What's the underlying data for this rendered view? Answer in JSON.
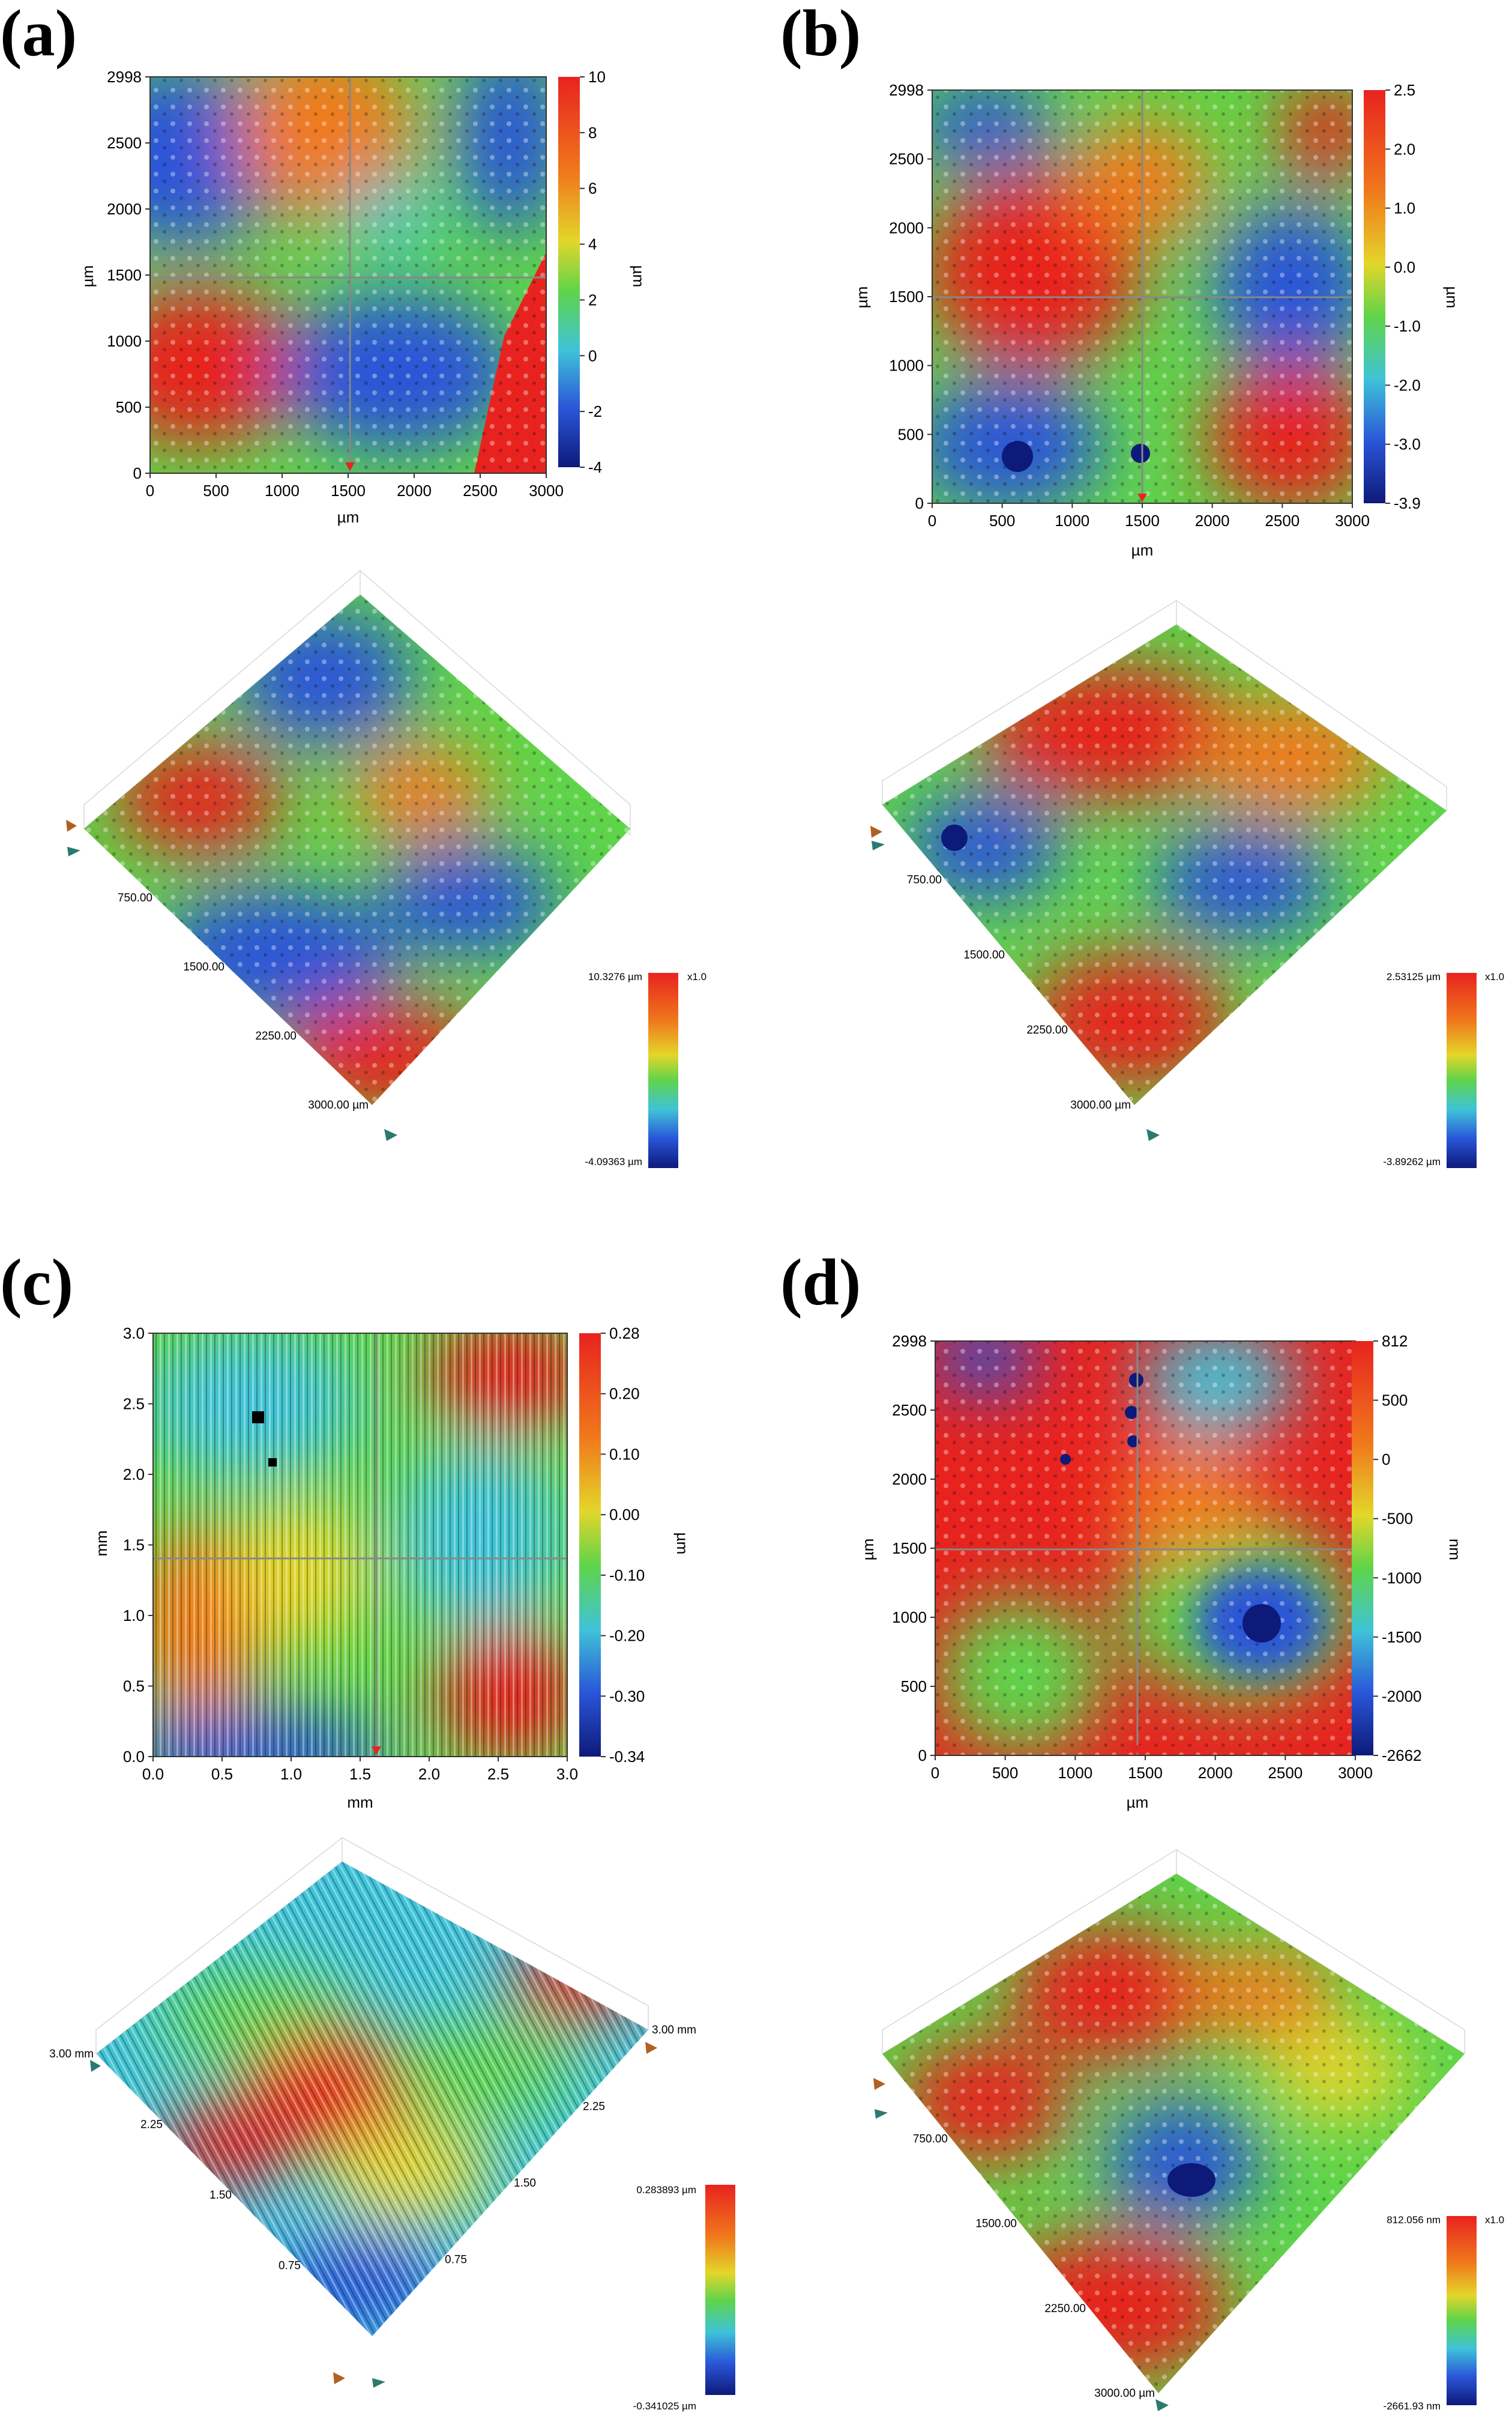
{
  "panels": {
    "a": {
      "label": "(a)",
      "map": {
        "x_ticks": [
          "0",
          "500",
          "1000",
          "1500",
          "2000",
          "2500",
          "3000"
        ],
        "y_ticks": [
          "0",
          "500",
          "1000",
          "1500",
          "2000",
          "2500",
          "2998"
        ],
        "x_unit": "µm",
        "y_unit": "µm",
        "scale_ticks": [
          "10",
          "8",
          "6",
          "4",
          "2",
          "0",
          "-2",
          "-4"
        ],
        "scale_unit": "µm"
      },
      "surface": {
        "axis_ticks": [
          "750.00",
          "1500.00",
          "2250.00",
          "3000.00 µm"
        ],
        "scale_max": "10.3276 µm",
        "scale_min": "-4.09363 µm",
        "zoom": "x1.0"
      }
    },
    "b": {
      "label": "(b)",
      "map": {
        "x_ticks": [
          "0",
          "500",
          "1000",
          "1500",
          "2000",
          "2500",
          "3000"
        ],
        "y_ticks": [
          "0",
          "500",
          "1000",
          "1500",
          "2000",
          "2500",
          "2998"
        ],
        "x_unit": "µm",
        "y_unit": "µm",
        "scale_ticks": [
          "2.5",
          "2.0",
          "1.0",
          "0.0",
          "-1.0",
          "-2.0",
          "-3.0",
          "-3.9"
        ],
        "scale_unit": "µm"
      },
      "surface": {
        "axis_ticks": [
          "750.00",
          "1500.00",
          "2250.00",
          "3000.00 µm"
        ],
        "scale_max": "2.53125 µm",
        "scale_min": "-3.89262 µm",
        "zoom": "x1.0"
      }
    },
    "c": {
      "label": "(c)",
      "map": {
        "x_ticks": [
          "0.0",
          "0.5",
          "1.0",
          "1.5",
          "2.0",
          "2.5",
          "3.0"
        ],
        "y_ticks": [
          "0.0",
          "0.5",
          "1.0",
          "1.5",
          "2.0",
          "2.5",
          "3.0"
        ],
        "x_unit": "mm",
        "y_unit": "mm",
        "scale_ticks": [
          "0.28",
          "0.20",
          "0.10",
          "0.00",
          "-0.10",
          "-0.20",
          "-0.30",
          "-0.34"
        ],
        "scale_unit": "µm"
      },
      "surface": {
        "left_ticks": [
          "3.00 mm",
          "2.25",
          "1.50",
          "0.75"
        ],
        "right_ticks": [
          "3.00 mm",
          "2.25",
          "1.50",
          "0.75"
        ],
        "scale_max": "0.283893 µm",
        "scale_min": "-0.341025 µm"
      }
    },
    "d": {
      "label": "(d)",
      "map": {
        "x_ticks": [
          "0",
          "500",
          "1000",
          "1500",
          "2000",
          "2500",
          "3000"
        ],
        "y_ticks": [
          "0",
          "500",
          "1000",
          "1500",
          "2000",
          "2500",
          "2998"
        ],
        "x_unit": "µm",
        "y_unit": "µm",
        "scale_ticks": [
          "812",
          "500",
          "0",
          "-500",
          "-1000",
          "-1500",
          "-2000",
          "-2662"
        ],
        "scale_unit": "nm"
      },
      "surface": {
        "axis_ticks": [
          "750.00",
          "1500.00",
          "2250.00",
          "3000.00 µm"
        ],
        "scale_max": "812.056 nm",
        "scale_min": "-2661.93 nm",
        "zoom": "x1.0"
      }
    }
  },
  "colors": {
    "red": "#e8231f",
    "orange": "#f07a1c",
    "yellow": "#e3d62a",
    "green": "#5fd44a",
    "cyan": "#3fc3d8",
    "blue": "#2a55d8",
    "navy": "#0d1a7a"
  }
}
